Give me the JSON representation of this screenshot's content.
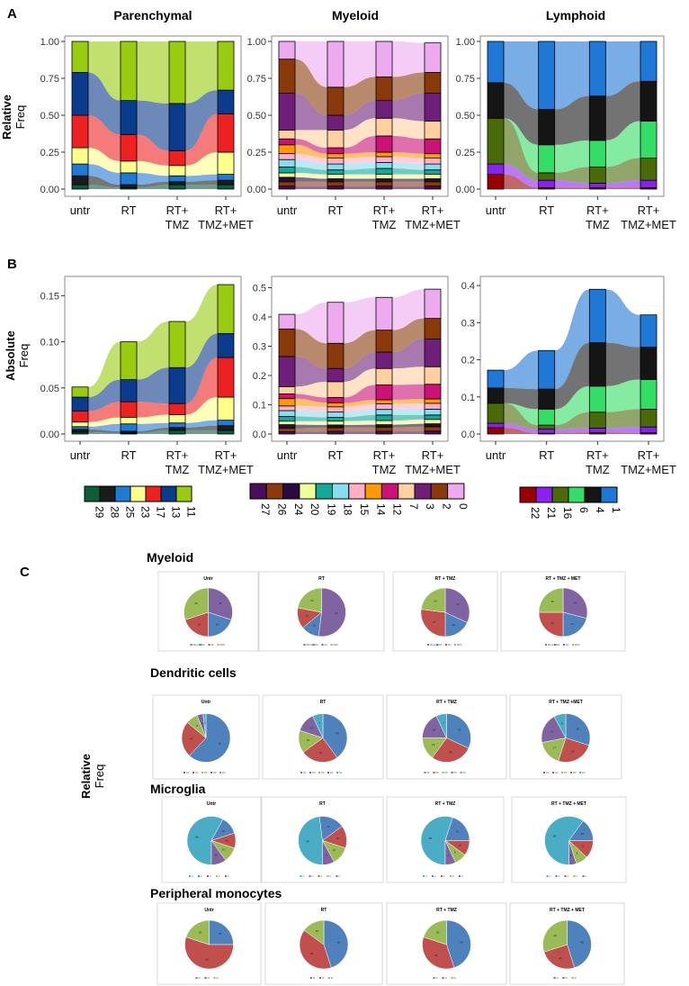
{
  "panel_labels": {
    "A": "A",
    "B": "B",
    "C": "C"
  },
  "titles": {
    "parenchymal": "Parenchymal",
    "myeloid": "Myeloid",
    "lymphoid": "Lymphoid"
  },
  "ylabels": {
    "relative_bold": "Relative",
    "relative_light": "Freq",
    "absolute_bold": "Absolute",
    "absolute_light": "Freq"
  },
  "conditions": [
    [
      "untr"
    ],
    [
      "RT"
    ],
    [
      "RT+",
      "TMZ"
    ],
    [
      "RT+",
      "TMZ+MET"
    ]
  ],
  "colors": {
    "29": "#0d5c3a",
    "28": "#1b1b1b",
    "25": "#1f7ad6",
    "23": "#ffff8c",
    "17": "#ee2121",
    "13": "#0b3b8c",
    "11": "#99cc11",
    "27": "#4a0f5a",
    "26": "#8b3b0b",
    "24": "#2b0a3d",
    "20": "#eeff99",
    "19": "#13a89a",
    "18": "#88ddee",
    "15": "#ffb0c8",
    "14": "#ff9900",
    "12": "#cc1177",
    "7": "#ffd0a0",
    "3": "#6e1f7a",
    "2": "#8a3a0a",
    "0": "#eeaaee",
    "22": "#990000",
    "21": "#8822ee",
    "16": "#4a6a0a",
    "6": "#33dd66",
    "4": "#151515",
    "1": "#1f77d6"
  },
  "legends": {
    "parenchymal": [
      "29",
      "28",
      "25",
      "23",
      "17",
      "13",
      "11"
    ],
    "myeloid": [
      "27",
      "26",
      "24",
      "20",
      "19",
      "18",
      "15",
      "14",
      "12",
      "7",
      "3",
      "2",
      "0"
    ],
    "lymphoid": [
      "22",
      "21",
      "16",
      "6",
      "4",
      "1"
    ]
  },
  "pie_labels": {
    "panel_c_ylabel_bold": "Relative",
    "panel_c_ylabel_light": "Freq"
  },
  "chart_data": [
    {
      "type": "area",
      "title": "Parenchymal",
      "panel": "A",
      "ylabel": "Relative Freq",
      "ylim": [
        0,
        1
      ],
      "yticks": [
        "0.00",
        "0.25",
        "0.50",
        "0.75",
        "1.00"
      ],
      "categories": [
        "untr",
        "RT",
        "RT+ TMZ",
        "RT+ TMZ+MET"
      ],
      "series": [
        {
          "name": "29",
          "values": [
            0.03,
            0.01,
            0.03,
            0.03
          ]
        },
        {
          "name": "28",
          "values": [
            0.06,
            0.02,
            0.02,
            0.03
          ]
        },
        {
          "name": "25",
          "values": [
            0.08,
            0.08,
            0.04,
            0.04
          ]
        },
        {
          "name": "23",
          "values": [
            0.11,
            0.08,
            0.07,
            0.15
          ]
        },
        {
          "name": "17",
          "values": [
            0.22,
            0.18,
            0.1,
            0.26
          ]
        },
        {
          "name": "13",
          "values": [
            0.29,
            0.23,
            0.32,
            0.16
          ]
        },
        {
          "name": "11",
          "values": [
            0.21,
            0.4,
            0.42,
            0.33
          ]
        }
      ]
    },
    {
      "type": "area",
      "title": "Myeloid",
      "panel": "A",
      "ylim": [
        0,
        1
      ],
      "yticks": [
        "0.00",
        "0.25",
        "0.50",
        "0.75",
        "1.00"
      ],
      "categories": [
        "untr",
        "RT",
        "RT+ TMZ",
        "RT+ TMZ+MET"
      ],
      "series": [
        {
          "name": "27",
          "values": [
            0.02,
            0.02,
            0.02,
            0.02
          ]
        },
        {
          "name": "26",
          "values": [
            0.03,
            0.03,
            0.03,
            0.03
          ]
        },
        {
          "name": "24",
          "values": [
            0.03,
            0.02,
            0.02,
            0.02
          ]
        },
        {
          "name": "20",
          "values": [
            0.03,
            0.03,
            0.03,
            0.03
          ]
        },
        {
          "name": "19",
          "values": [
            0.04,
            0.03,
            0.04,
            0.03
          ]
        },
        {
          "name": "18",
          "values": [
            0.05,
            0.04,
            0.04,
            0.04
          ]
        },
        {
          "name": "15",
          "values": [
            0.04,
            0.04,
            0.04,
            0.04
          ]
        },
        {
          "name": "14",
          "values": [
            0.06,
            0.03,
            0.03,
            0.03
          ]
        },
        {
          "name": "12",
          "values": [
            0.04,
            0.04,
            0.11,
            0.1
          ]
        },
        {
          "name": "7",
          "values": [
            0.06,
            0.12,
            0.12,
            0.12
          ]
        },
        {
          "name": "3",
          "values": [
            0.25,
            0.1,
            0.12,
            0.19
          ]
        },
        {
          "name": "2",
          "values": [
            0.23,
            0.19,
            0.16,
            0.14
          ]
        },
        {
          "name": "0",
          "values": [
            0.12,
            0.31,
            0.24,
            0.2
          ]
        }
      ]
    },
    {
      "type": "area",
      "title": "Lymphoid",
      "panel": "A",
      "ylim": [
        0,
        1
      ],
      "yticks": [
        "0.00",
        "0.25",
        "0.50",
        "0.75",
        "1.00"
      ],
      "categories": [
        "untr",
        "RT",
        "RT+ TMZ",
        "RT+ TMZ+MET"
      ],
      "series": [
        {
          "name": "22",
          "values": [
            0.1,
            0.01,
            0.01,
            0.01
          ]
        },
        {
          "name": "21",
          "values": [
            0.07,
            0.05,
            0.03,
            0.05
          ]
        },
        {
          "name": "16",
          "values": [
            0.31,
            0.05,
            0.11,
            0.15
          ]
        },
        {
          "name": "6",
          "values": [
            0.0,
            0.19,
            0.18,
            0.25
          ]
        },
        {
          "name": "4",
          "values": [
            0.24,
            0.24,
            0.3,
            0.27
          ]
        },
        {
          "name": "1",
          "values": [
            0.28,
            0.46,
            0.37,
            0.27
          ]
        }
      ]
    },
    {
      "type": "area",
      "title": "Parenchymal",
      "panel": "B",
      "ylabel": "Absolute Freq",
      "ylim": [
        0,
        0.165
      ],
      "yticks": [
        "0.00",
        "0.05",
        "0.10",
        "0.15"
      ],
      "categories": [
        "untr",
        "RT",
        "RT+ TMZ",
        "RT+ TMZ+MET"
      ],
      "series": [
        {
          "name": "29",
          "values": [
            0.002,
            0.001,
            0.004,
            0.004
          ]
        },
        {
          "name": "28",
          "values": [
            0.003,
            0.002,
            0.003,
            0.005
          ]
        },
        {
          "name": "25",
          "values": [
            0.003,
            0.008,
            0.005,
            0.006
          ]
        },
        {
          "name": "23",
          "values": [
            0.005,
            0.007,
            0.009,
            0.025
          ]
        },
        {
          "name": "17",
          "values": [
            0.012,
            0.017,
            0.012,
            0.043
          ]
        },
        {
          "name": "13",
          "values": [
            0.015,
            0.024,
            0.039,
            0.026
          ]
        },
        {
          "name": "11",
          "values": [
            0.011,
            0.041,
            0.05,
            0.053
          ]
        }
      ]
    },
    {
      "type": "area",
      "title": "Myeloid",
      "panel": "B",
      "ylim": [
        0,
        0.52
      ],
      "yticks": [
        "0.0",
        "0.1",
        "0.2",
        "0.3",
        "0.4",
        "0.5"
      ],
      "categories": [
        "untr",
        "RT",
        "RT+ TMZ",
        "RT+ TMZ+MET"
      ],
      "series": [
        {
          "name": "27",
          "values": [
            0.008,
            0.009,
            0.009,
            0.01
          ]
        },
        {
          "name": "26",
          "values": [
            0.012,
            0.013,
            0.014,
            0.015
          ]
        },
        {
          "name": "24",
          "values": [
            0.012,
            0.009,
            0.009,
            0.01
          ]
        },
        {
          "name": "20",
          "values": [
            0.012,
            0.013,
            0.014,
            0.015
          ]
        },
        {
          "name": "19",
          "values": [
            0.016,
            0.013,
            0.019,
            0.015
          ]
        },
        {
          "name": "18",
          "values": [
            0.02,
            0.018,
            0.019,
            0.02
          ]
        },
        {
          "name": "15",
          "values": [
            0.016,
            0.018,
            0.019,
            0.02
          ]
        },
        {
          "name": "14",
          "values": [
            0.025,
            0.014,
            0.014,
            0.015
          ]
        },
        {
          "name": "12",
          "values": [
            0.016,
            0.018,
            0.051,
            0.05
          ]
        },
        {
          "name": "7",
          "values": [
            0.025,
            0.054,
            0.056,
            0.06
          ]
        },
        {
          "name": "3",
          "values": [
            0.103,
            0.045,
            0.056,
            0.095
          ]
        },
        {
          "name": "2",
          "values": [
            0.094,
            0.086,
            0.075,
            0.07
          ]
        },
        {
          "name": "0",
          "values": [
            0.05,
            0.14,
            0.112,
            0.1
          ]
        }
      ]
    },
    {
      "type": "area",
      "title": "Lymphoid",
      "panel": "B",
      "ylim": [
        0,
        0.41
      ],
      "yticks": [
        "0.0",
        "0.1",
        "0.2",
        "0.3",
        "0.4"
      ],
      "categories": [
        "untr",
        "RT",
        "RT+ TMZ",
        "RT+ TMZ+MET"
      ],
      "series": [
        {
          "name": "22",
          "values": [
            0.017,
            0.002,
            0.004,
            0.003
          ]
        },
        {
          "name": "21",
          "values": [
            0.012,
            0.011,
            0.012,
            0.016
          ]
        },
        {
          "name": "16",
          "values": [
            0.054,
            0.011,
            0.043,
            0.048
          ]
        },
        {
          "name": "6",
          "values": [
            0.0,
            0.043,
            0.07,
            0.08
          ]
        },
        {
          "name": "4",
          "values": [
            0.041,
            0.054,
            0.117,
            0.087
          ]
        },
        {
          "name": "1",
          "values": [
            0.048,
            0.104,
            0.144,
            0.087
          ]
        }
      ]
    },
    {
      "type": "pie",
      "panel": "C",
      "row_title": "Myeloid",
      "labels": [
        "Microglia",
        "DC",
        "Mo",
        "MDC"
      ],
      "pies": [
        {
          "title": "Untr",
          "values": [
            30,
            20,
            20,
            30
          ]
        },
        {
          "title": "RT",
          "values": [
            52,
            12,
            14,
            22
          ]
        },
        {
          "title": "RT + TMZ",
          "values": [
            32,
            18,
            27,
            23
          ]
        },
        {
          "title": "RT + TMZ + MET",
          "values": [
            29,
            21,
            25,
            25
          ]
        }
      ]
    },
    {
      "type": "pie",
      "panel": "C",
      "row_title": "Dendritic cells",
      "labels": [
        "DC",
        "DC",
        "DC",
        "DC",
        "DC"
      ],
      "pies": [
        {
          "title": "Untr",
          "values": [
            62,
            24,
            8,
            4,
            2
          ]
        },
        {
          "title": "RT",
          "values": [
            40,
            25,
            15,
            13,
            7
          ]
        },
        {
          "title": "RT + TMZ",
          "values": [
            32,
            28,
            15,
            18,
            7
          ]
        },
        {
          "title": "RT + TMZ +MET",
          "values": [
            30,
            25,
            17,
            20,
            8
          ]
        }
      ]
    },
    {
      "type": "pie",
      "panel": "C",
      "row_title": "Microglia",
      "labels": [
        "C",
        "C",
        "C",
        "C",
        "C"
      ],
      "pies": [
        {
          "title": "Untr",
          "values": [
            58,
            12,
            10,
            10,
            10
          ]
        },
        {
          "title": "RT",
          "values": [
            48,
            17,
            15,
            12,
            8
          ]
        },
        {
          "title": "RT + TMZ",
          "values": [
            55,
            20,
            10,
            8,
            7
          ]
        },
        {
          "title": "RT + TMZ + MET",
          "values": [
            60,
            15,
            12,
            8,
            5
          ]
        }
      ]
    },
    {
      "type": "pie",
      "panel": "C",
      "row_title": "Peripheral monocytes",
      "labels": [
        "M",
        "M",
        "M"
      ],
      "pies": [
        {
          "title": "Untr",
          "values": [
            25,
            55,
            20
          ]
        },
        {
          "title": "RT",
          "values": [
            45,
            40,
            15
          ]
        },
        {
          "title": "RT + TMZ",
          "values": [
            45,
            35,
            20
          ]
        },
        {
          "title": "RT + TMZ + MET",
          "values": [
            45,
            25,
            30
          ]
        }
      ]
    }
  ]
}
